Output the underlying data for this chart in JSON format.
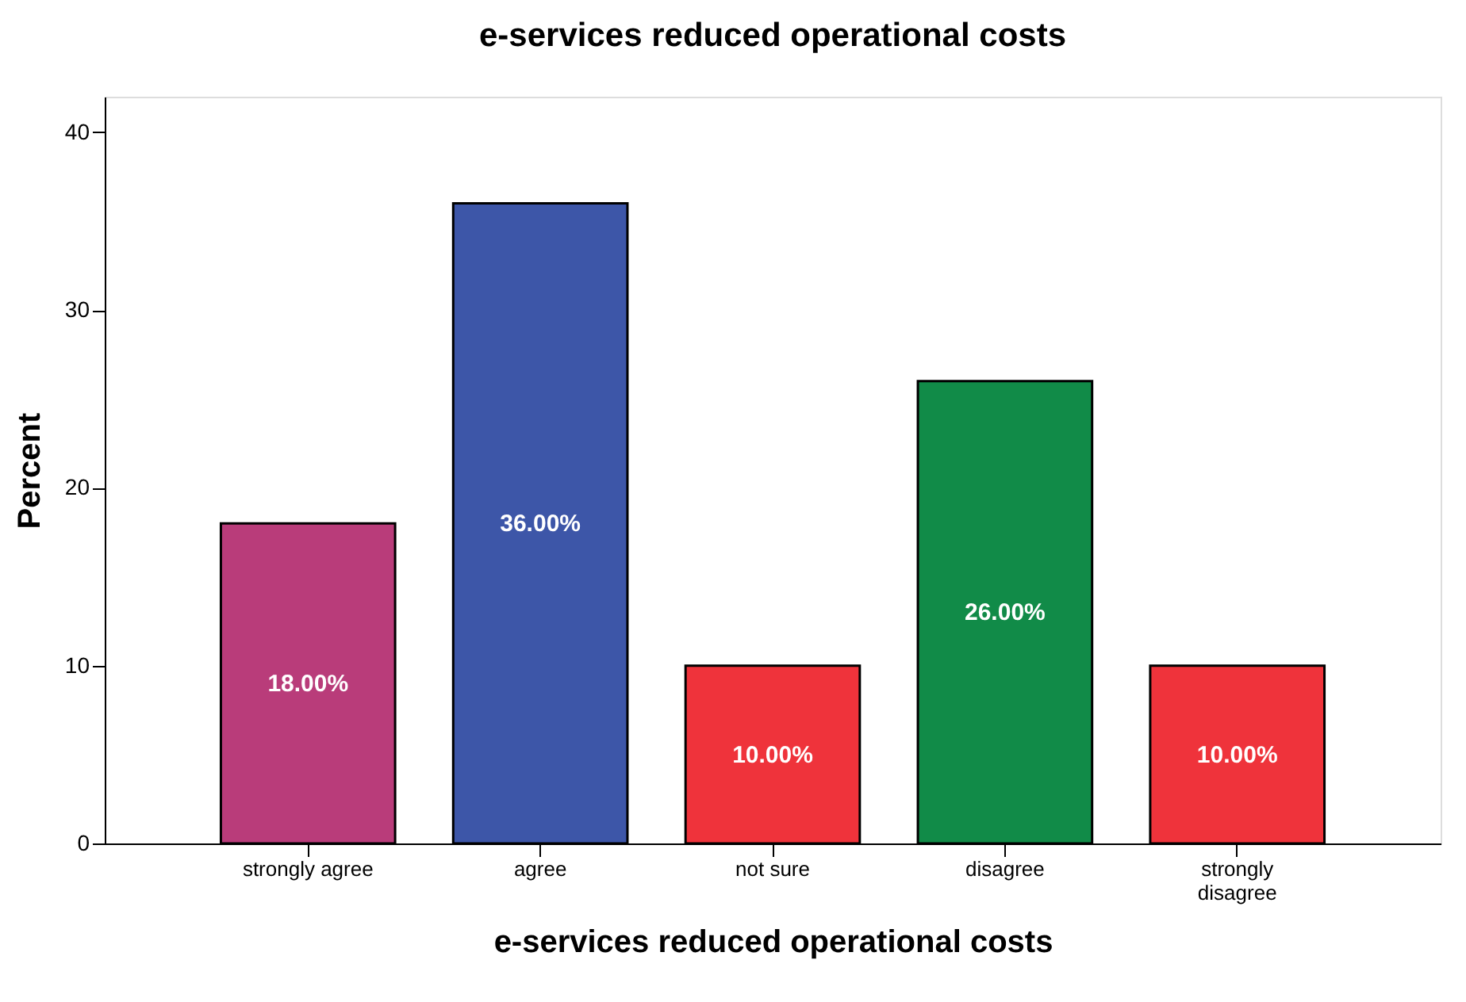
{
  "chart_data": {
    "type": "bar",
    "title": "e-services reduced operational costs",
    "xlabel": "e-services reduced operational costs",
    "ylabel": "Percent",
    "categories": [
      "strongly agree",
      "agree",
      "not sure",
      "disagree",
      "strongly disagree"
    ],
    "values": [
      18,
      36,
      10,
      26,
      10
    ],
    "colors": [
      "#b93c7a",
      "#3d56a8",
      "#ef333b",
      "#118b48",
      "#ef333b"
    ],
    "value_labels": [
      "18.00%",
      "36.00%",
      "10.00%",
      "26.00%",
      "10.00%"
    ],
    "ylim": [
      0,
      42
    ],
    "yticks": [
      0,
      10,
      20,
      30,
      40
    ],
    "grid": false
  }
}
